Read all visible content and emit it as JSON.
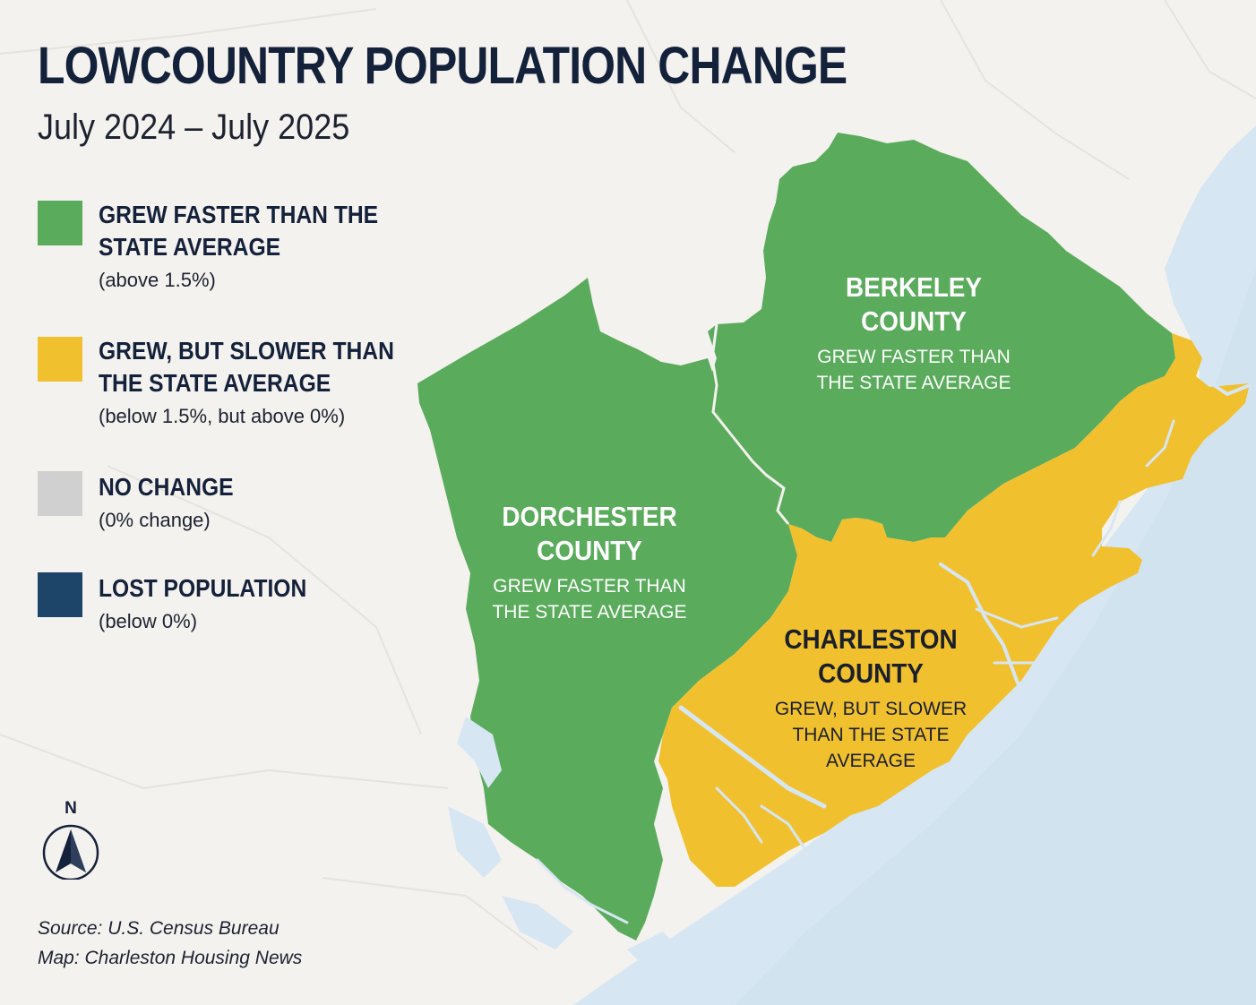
{
  "title": "LOWCOUNTRY POPULATION CHANGE",
  "subtitle": "July 2024 – July 2025",
  "legend": [
    {
      "heading": "GREW FASTER THAN THE STATE AVERAGE",
      "note": "(above 1.5%)",
      "color": "#5aab5c"
    },
    {
      "heading": "GREW, BUT SLOWER THAN THE STATE AVERAGE",
      "note": "(below 1.5%, but above 0%)",
      "color": "#f1c02e"
    },
    {
      "heading": "NO CHANGE",
      "note": "(0% change)",
      "color": "#d0d0d0"
    },
    {
      "heading": "LOST POPULATION",
      "note": "(below 0%)",
      "color": "#1d4569"
    }
  ],
  "counties": {
    "dorchester": {
      "name": "DORCHESTER COUNTY",
      "status": "GREW FASTER THAN THE STATE AVERAGE",
      "category": "GREW FASTER THAN THE STATE AVERAGE",
      "color": "#5aab5c"
    },
    "berkeley": {
      "name": "BERKELEY COUNTY",
      "status": "GREW FASTER THAN THE STATE AVERAGE",
      "category": "GREW FASTER THAN THE STATE AVERAGE",
      "color": "#5aab5c"
    },
    "charleston": {
      "name": "CHARLESTON COUNTY",
      "status": "GREW, BUT SLOWER THAN THE STATE AVERAGE",
      "category": "GREW, BUT SLOWER THAN THE STATE AVERAGE",
      "color": "#f1c02e"
    }
  },
  "colors": {
    "ocean": "#d6e6f2",
    "land": "#f4f2ee",
    "text": "#14213a"
  },
  "north_label": "N",
  "source_line": "Source: U.S. Census Bureau",
  "map_credit": "Map: Charleston Housing News"
}
